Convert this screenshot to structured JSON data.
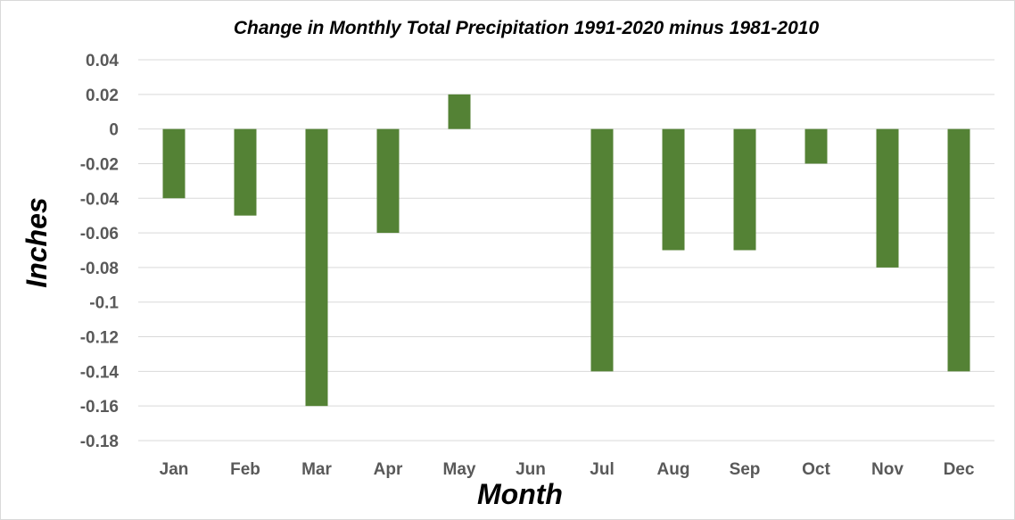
{
  "chart_data": {
    "type": "bar",
    "title": "Change in Monthly Total Precipitation 1991-2020 minus 1981-2010",
    "xlabel": "Month",
    "ylabel": "Inches",
    "categories": [
      "Jan",
      "Feb",
      "Mar",
      "Apr",
      "May",
      "Jun",
      "Jul",
      "Aug",
      "Sep",
      "Oct",
      "Nov",
      "Dec"
    ],
    "values": [
      -0.04,
      -0.05,
      -0.16,
      -0.06,
      0.02,
      0,
      -0.14,
      -0.07,
      -0.07,
      -0.02,
      -0.08,
      -0.14
    ],
    "ylim": [
      -0.18,
      0.04
    ],
    "yticks": [
      "0.04",
      "0.02",
      "0",
      "-0.02",
      "-0.04",
      "-0.06",
      "-0.08",
      "-0.1",
      "-0.12",
      "-0.14",
      "-0.16",
      "-0.18"
    ],
    "grid": true,
    "legend": "none",
    "bar_color": "#548235",
    "grid_color": "#d9d9d9"
  }
}
